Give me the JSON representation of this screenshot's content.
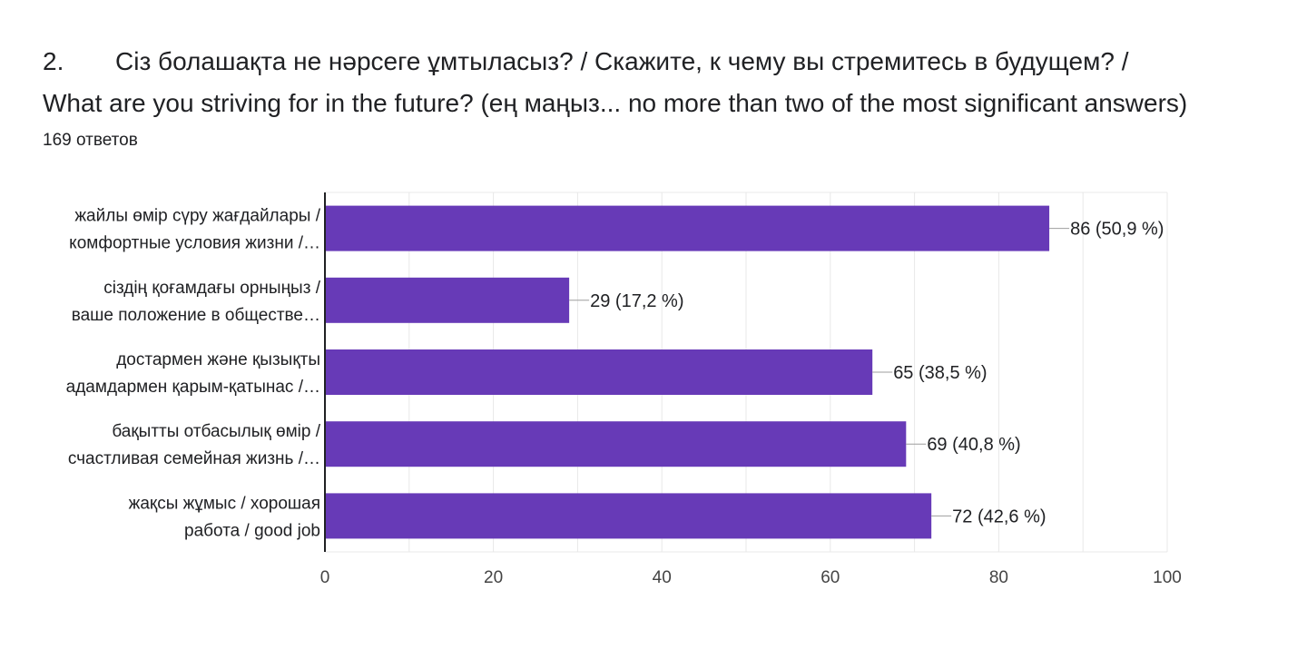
{
  "question": {
    "number": "2.",
    "line1": "Сіз болашақта не нәрсеге ұмтыласыз? / Скажите, к чему вы стремитесь в будущем? /",
    "line2": "What are you striving for in the future?  (ең маңыз... no more than two of the most significant answers)",
    "responses": "169 ответов"
  },
  "colors": {
    "bar": "#673ab7",
    "grid": "#e8e8e8",
    "axis": "#202124",
    "leader": "#9e9e9e"
  },
  "chart_data": {
    "type": "bar",
    "orientation": "horizontal",
    "categories": [
      [
        "жайлы өмір сүру жағдайлары /",
        "комфортные условия жизни /…"
      ],
      [
        "сіздің қоғамдағы орныңыз /",
        "ваше положение в обществе…"
      ],
      [
        "достармен және қызықты",
        "адамдармен қарым-қатынас /…"
      ],
      [
        "бақытты отбасылық өмір /",
        "счастливая семейная жизнь /…"
      ],
      [
        "жақсы жұмыс / хорошая",
        "работа / good job"
      ]
    ],
    "values": [
      86,
      29,
      65,
      69,
      72
    ],
    "data_labels": [
      "86 (50,9 %)",
      "29 (17,2 %)",
      "65 (38,5 %)",
      "69 (40,8 %)",
      "72 (42,6 %)"
    ],
    "xlim": [
      0,
      100
    ],
    "xticks": [
      0,
      20,
      40,
      60,
      80,
      100
    ],
    "grid": true
  }
}
